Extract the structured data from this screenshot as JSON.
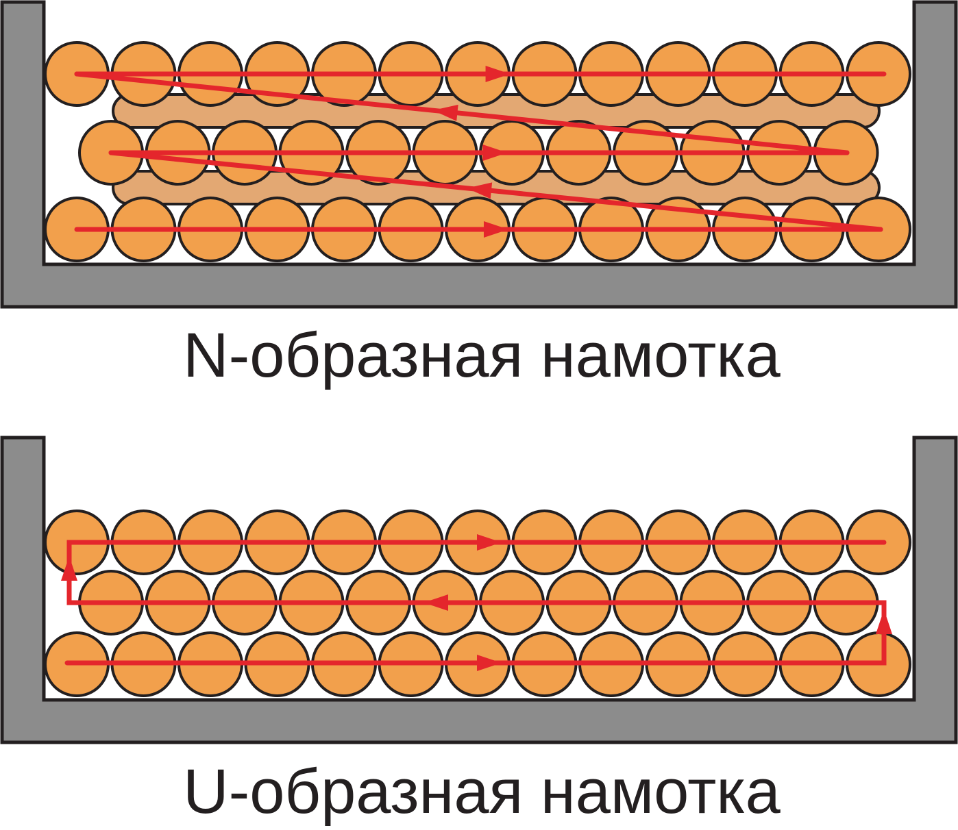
{
  "diagrams": [
    {
      "id": "n",
      "caption": "N-образная намотка"
    },
    {
      "id": "u",
      "caption": "U-образная намотка"
    }
  ],
  "colors": {
    "bobbin": "#8c8c8c",
    "outline": "#231f20",
    "wire": "#f2a04c",
    "wire_back": "#e3a873",
    "path": "#e4262c",
    "background": "#ffffff"
  }
}
